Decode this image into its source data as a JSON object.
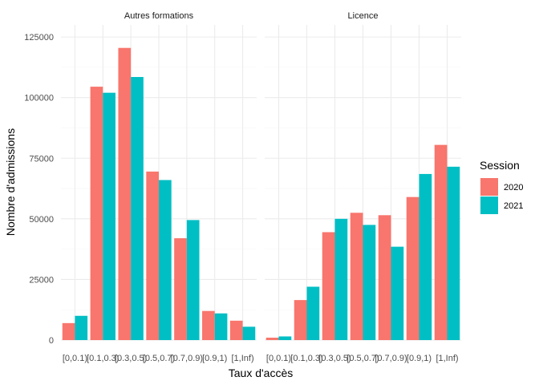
{
  "chart_data": {
    "type": "bar",
    "xlabel": "Taux d'accès",
    "ylabel": "Nombre d'admissions",
    "ylim": [
      0,
      130000
    ],
    "yticks": [
      0,
      25000,
      50000,
      75000,
      100000,
      125000
    ],
    "ytick_labels": [
      "0",
      "25000",
      "50000",
      "75000",
      "100000",
      "125000"
    ],
    "categories": [
      "[0,0.1)",
      "[0.1,0.3)",
      "[0.3,0.5)",
      "[0.5,0.7)",
      "[0.7,0.9)",
      "[0.9,1)",
      "[1,Inf)"
    ],
    "grid": true,
    "legend": {
      "title": "Session",
      "position": "right",
      "entries": [
        "2020",
        "2021"
      ]
    },
    "colors": {
      "2020": "#F8766D",
      "2021": "#00BFC4"
    },
    "facets": [
      {
        "label": "Autres formations",
        "series": [
          {
            "name": "2020",
            "values": [
              7000,
              104500,
              120500,
              69500,
              42000,
              12000,
              8000
            ]
          },
          {
            "name": "2021",
            "values": [
              10000,
              102000,
              108500,
              66000,
              49500,
              11000,
              5500
            ]
          }
        ]
      },
      {
        "label": "Licence",
        "series": [
          {
            "name": "2020",
            "values": [
              1000,
              16500,
              44500,
              52500,
              51500,
              59000,
              80500
            ]
          },
          {
            "name": "2021",
            "values": [
              1500,
              22000,
              50000,
              47500,
              38500,
              68500,
              71500
            ]
          }
        ]
      }
    ]
  }
}
